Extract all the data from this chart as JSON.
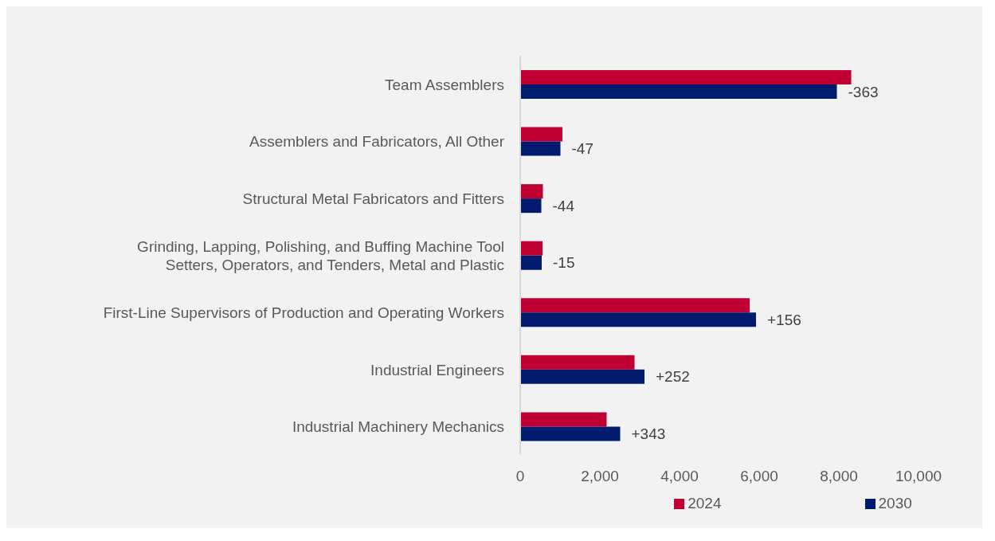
{
  "chart_data": {
    "type": "bar",
    "orientation": "horizontal",
    "categories": [
      "Team Assemblers",
      "Assemblers and Fabricators, All Other",
      "Structural Metal Fabricators and Fitters",
      "Grinding, Lapping, Polishing, and Buffing Machine Tool Setters, Operators, and Tenders, Metal and Plastic",
      "First-Line Supervisors of Production and Operating Workers",
      "Industrial Engineers",
      "Industrial Machinery Mechanics"
    ],
    "series": [
      {
        "name": "2024",
        "color": "#c00032",
        "values": [
          8310,
          1060,
          570,
          560,
          5760,
          2870,
          2170
        ]
      },
      {
        "name": "2030",
        "color": "#001a6e",
        "values": [
          7950,
          1010,
          530,
          540,
          5920,
          3120,
          2510
        ]
      }
    ],
    "annotations": [
      {
        "text": "-363",
        "x": 7950,
        "y": "Team Assemblers"
      },
      {
        "text": "-47",
        "x": 1010,
        "y": "Assemblers and Fabricators, All Other"
      },
      {
        "text": "-44",
        "x": 530,
        "y": "Structural Metal Fabricators and Fitters"
      },
      {
        "text": "-15",
        "x": 540,
        "y": "Grinding, Lapping, Polishing, and Buffing Machine Tool Setters, Operators, and Tenders, Metal and Plastic"
      },
      {
        "text": "+156",
        "x": 5920,
        "y": "First-Line Supervisors of Production and Operating Workers"
      },
      {
        "text": "+252",
        "x": 3120,
        "y": "Industrial Engineers"
      },
      {
        "text": "+343",
        "x": 2510,
        "y": "Industrial Machinery Mechanics"
      }
    ],
    "xlim": [
      0,
      10000
    ],
    "xticks": [
      {
        "value": 0,
        "label": "0"
      },
      {
        "value": 2000,
        "label": "2,000"
      },
      {
        "value": 4000,
        "label": "4,000"
      },
      {
        "value": 6000,
        "label": "6,000"
      },
      {
        "value": 8000,
        "label": "8,000"
      },
      {
        "value": 10000,
        "label": "10,000"
      }
    ],
    "grid": false,
    "legend": "bottom"
  }
}
